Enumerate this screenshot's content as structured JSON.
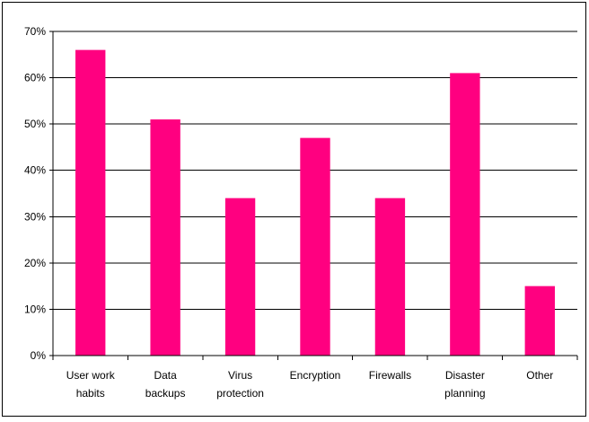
{
  "chart_data": {
    "type": "bar",
    "title": "",
    "xlabel": "",
    "ylabel": "",
    "categories": [
      [
        "User work",
        "habits"
      ],
      [
        "Data",
        "backups"
      ],
      [
        "Virus",
        "protection"
      ],
      [
        "Encryption"
      ],
      [
        "Firewalls"
      ],
      [
        "Disaster",
        "planning"
      ],
      [
        "Other"
      ]
    ],
    "values": [
      66,
      51,
      34,
      47,
      34,
      61,
      15
    ],
    "value_format": "percent",
    "ylim": [
      0,
      70
    ],
    "yticks": [
      0,
      10,
      20,
      30,
      40,
      50,
      60,
      70
    ],
    "ytick_labels": [
      "0%",
      "10%",
      "20%",
      "30%",
      "40%",
      "50%",
      "60%",
      "70%"
    ],
    "grid": true,
    "legend": "none",
    "colors": {
      "bar": "#FF0080",
      "grid": "#000000",
      "axis": "#000000"
    }
  }
}
